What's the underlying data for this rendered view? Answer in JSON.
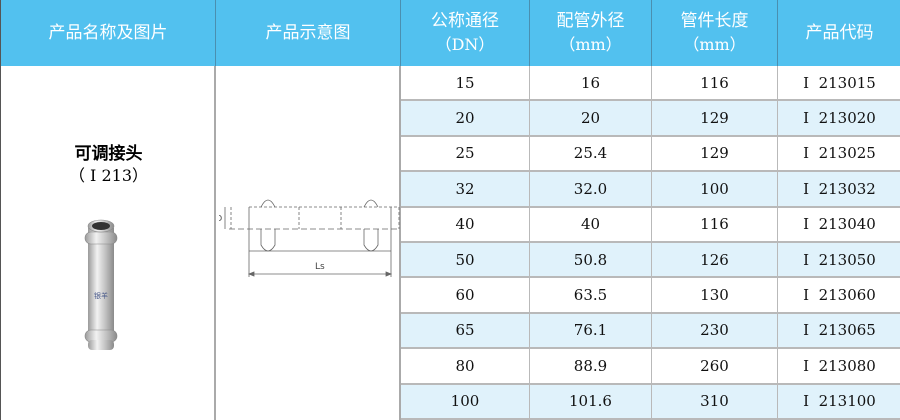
{
  "colors": {
    "header_bg": "#52c1ef",
    "header_text": "#ffffff",
    "alt_row": "#e0f2fb"
  },
  "headers": [
    {
      "line1": "产品名称及图片",
      "line2": ""
    },
    {
      "line1": "产品示意图",
      "line2": ""
    },
    {
      "line1": "公称通径",
      "line2": "（DN）"
    },
    {
      "line1": "配管外径",
      "line2": "（mm）"
    },
    {
      "line1": "管件长度",
      "line2": "（mm）"
    },
    {
      "line1": "产品代码",
      "line2": ""
    }
  ],
  "product": {
    "name": "可调接头",
    "code": "（ I 213）",
    "logo_text": "银羊",
    "image": "pipe-coupling-photo"
  },
  "diagram": {
    "label_d": "D",
    "label_ls": "Ls"
  },
  "rows": [
    {
      "dn": "15",
      "od": "16",
      "len": "116",
      "code": "I  213015"
    },
    {
      "dn": "20",
      "od": "20",
      "len": "129",
      "code": "I  213020"
    },
    {
      "dn": "25",
      "od": "25.4",
      "len": "129",
      "code": "I  213025"
    },
    {
      "dn": "32",
      "od": "32.0",
      "len": "100",
      "code": "I  213032"
    },
    {
      "dn": "40",
      "od": "40",
      "len": "116",
      "code": "I  213040"
    },
    {
      "dn": "50",
      "od": "50.8",
      "len": "126",
      "code": "I  213050"
    },
    {
      "dn": "60",
      "od": "63.5",
      "len": "130",
      "code": "I  213060"
    },
    {
      "dn": "65",
      "od": "76.1",
      "len": "230",
      "code": "I  213065"
    },
    {
      "dn": "80",
      "od": "88.9",
      "len": "260",
      "code": "I  213080"
    },
    {
      "dn": "100",
      "od": "101.6",
      "len": "310",
      "code": "I  213100"
    }
  ]
}
